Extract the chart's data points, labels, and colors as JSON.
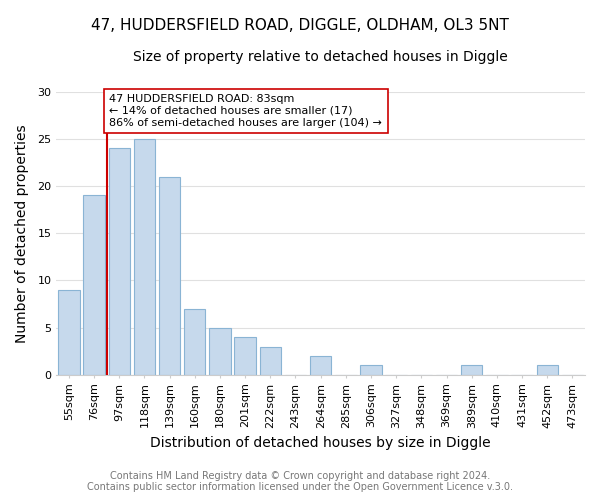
{
  "title1": "47, HUDDERSFIELD ROAD, DIGGLE, OLDHAM, OL3 5NT",
  "title2": "Size of property relative to detached houses in Diggle",
  "xlabel": "Distribution of detached houses by size in Diggle",
  "ylabel": "Number of detached properties",
  "bar_labels": [
    "55sqm",
    "76sqm",
    "97sqm",
    "118sqm",
    "139sqm",
    "160sqm",
    "180sqm",
    "201sqm",
    "222sqm",
    "243sqm",
    "264sqm",
    "285sqm",
    "306sqm",
    "327sqm",
    "348sqm",
    "369sqm",
    "389sqm",
    "410sqm",
    "431sqm",
    "452sqm",
    "473sqm"
  ],
  "bar_heights": [
    9,
    19,
    24,
    25,
    21,
    7,
    5,
    4,
    3,
    0,
    2,
    0,
    1,
    0,
    0,
    0,
    1,
    0,
    0,
    1,
    0
  ],
  "bar_color": "#c6d9ec",
  "bar_edge_color": "#8ab4d4",
  "vline_color": "#cc0000",
  "annotation_text": "47 HUDDERSFIELD ROAD: 83sqm\n← 14% of detached houses are smaller (17)\n86% of semi-detached houses are larger (104) →",
  "annotation_box_edgecolor": "#cc0000",
  "annotation_box_facecolor": "#ffffff",
  "ylim": [
    0,
    30
  ],
  "yticks": [
    0,
    5,
    10,
    15,
    20,
    25,
    30
  ],
  "footer1": "Contains HM Land Registry data © Crown copyright and database right 2024.",
  "footer2": "Contains public sector information licensed under the Open Government Licence v.3.0.",
  "background_color": "#ffffff",
  "plot_bg_color": "#ffffff",
  "grid_color": "#e0e0e0",
  "title1_fontsize": 11,
  "title2_fontsize": 10,
  "axis_label_fontsize": 10,
  "tick_fontsize": 8,
  "annotation_fontsize": 8,
  "footer_fontsize": 7
}
